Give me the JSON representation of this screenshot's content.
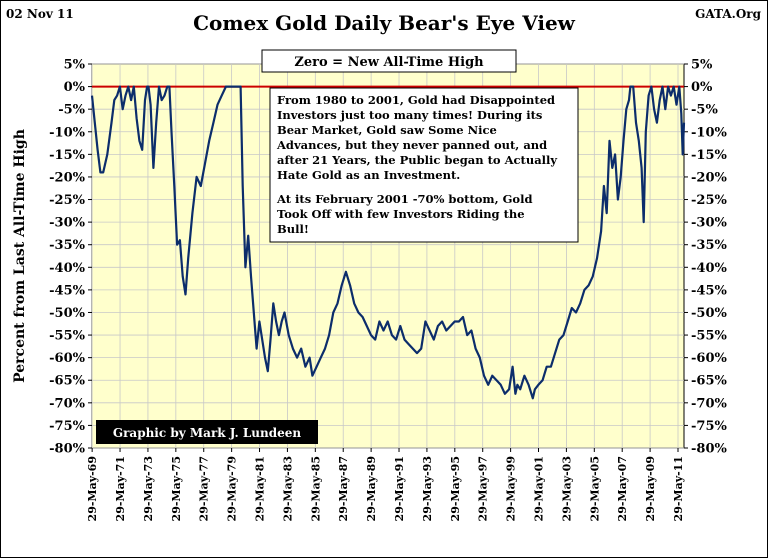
{
  "header": {
    "date_label": "02 Nov 11",
    "source_label": "GATA.Org",
    "title": "Comex Gold Daily Bear's Eye View"
  },
  "legend_box": "Zero = New All-Time High",
  "credit": "Graphic by Mark J. Lundeen",
  "annotation": {
    "line1": "From 1980 to 2001, Gold had Disappointed",
    "line2": "Investors just too many times!  During its",
    "line3": "Bear Market, Gold saw Some Nice",
    "line4": "Advances, but they never panned out, and",
    "line5": "after 21 Years, the Public began to Actually",
    "line6": "Hate Gold as an Investment.",
    "line7": "At its February 2001 -70% bottom, Gold",
    "line8": "Took Off with few Investors Riding the",
    "line9": "Bull!"
  },
  "colors": {
    "plot_background": "#ffffcc",
    "series": "#0c2d6b",
    "zero_line": "#cc0000",
    "gridline": "#c8c8c8"
  },
  "chart_data": {
    "type": "line",
    "title": "Comex Gold Daily Bear's Eye View",
    "ylabel": "Percent from Last All-Time High",
    "xlabel": "",
    "ylim": [
      -80,
      5
    ],
    "xlim": [
      1969.4,
      2011.84
    ],
    "y_ticks": [
      "5%",
      "0%",
      "-5%",
      "-10%",
      "-15%",
      "-20%",
      "-25%",
      "-30%",
      "-35%",
      "-40%",
      "-45%",
      "-50%",
      "-55%",
      "-60%",
      "-65%",
      "-70%",
      "-75%",
      "-80%"
    ],
    "x_ticks": [
      {
        "year": 1969.41,
        "label": "29-May-69"
      },
      {
        "year": 1971.41,
        "label": "29-May-71"
      },
      {
        "year": 1973.41,
        "label": "29-May-73"
      },
      {
        "year": 1975.41,
        "label": "29-May-75"
      },
      {
        "year": 1977.41,
        "label": "29-May-77"
      },
      {
        "year": 1979.41,
        "label": "29-May-79"
      },
      {
        "year": 1981.41,
        "label": "29-May-81"
      },
      {
        "year": 1983.41,
        "label": "29-May-83"
      },
      {
        "year": 1985.41,
        "label": "29-May-85"
      },
      {
        "year": 1987.41,
        "label": "29-May-87"
      },
      {
        "year": 1989.41,
        "label": "29-May-89"
      },
      {
        "year": 1991.41,
        "label": "29-May-91"
      },
      {
        "year": 1993.41,
        "label": "29-May-93"
      },
      {
        "year": 1995.41,
        "label": "29-May-95"
      },
      {
        "year": 1997.41,
        "label": "29-May-97"
      },
      {
        "year": 1999.41,
        "label": "29-May-99"
      },
      {
        "year": 2001.41,
        "label": "29-May-01"
      },
      {
        "year": 2003.41,
        "label": "29-May-03"
      },
      {
        "year": 2005.41,
        "label": "29-May-05"
      },
      {
        "year": 2007.41,
        "label": "29-May-07"
      },
      {
        "year": 2009.41,
        "label": "29-May-09"
      },
      {
        "year": 2011.41,
        "label": "29-May-11"
      }
    ],
    "grid": true,
    "zero_line": 0,
    "series": [
      {
        "x": [
          1969.4,
          1969.6,
          1969.8,
          1970.0,
          1970.2,
          1970.5,
          1970.8,
          1971.0,
          1971.2,
          1971.4,
          1971.6,
          1971.8,
          1972.0,
          1972.2,
          1972.4,
          1972.6,
          1972.8,
          1973.0,
          1973.2,
          1973.35,
          1973.45,
          1973.6,
          1973.8,
          1974.0,
          1974.2,
          1974.4,
          1974.6,
          1974.8,
          1974.95,
          1975.1,
          1975.3,
          1975.5,
          1975.7,
          1975.9,
          1976.1,
          1976.3,
          1976.6,
          1976.9,
          1977.2,
          1977.5,
          1977.8,
          1978.1,
          1978.4,
          1978.7,
          1979.0,
          1979.3,
          1979.6,
          1979.9,
          1980.05,
          1980.2,
          1980.4,
          1980.6,
          1980.8,
          1981.0,
          1981.2,
          1981.4,
          1981.6,
          1981.8,
          1982.0,
          1982.2,
          1982.4,
          1982.6,
          1982.8,
          1983.0,
          1983.2,
          1983.5,
          1983.8,
          1984.1,
          1984.4,
          1984.7,
          1985.0,
          1985.2,
          1985.5,
          1985.8,
          1986.1,
          1986.4,
          1986.7,
          1987.0,
          1987.3,
          1987.6,
          1987.9,
          1988.2,
          1988.5,
          1988.8,
          1989.1,
          1989.4,
          1989.7,
          1990.0,
          1990.3,
          1990.6,
          1990.9,
          1991.2,
          1991.5,
          1991.8,
          1992.1,
          1992.4,
          1992.7,
          1993.0,
          1993.3,
          1993.6,
          1993.9,
          1994.2,
          1994.5,
          1994.8,
          1995.1,
          1995.4,
          1995.7,
          1996.0,
          1996.3,
          1996.6,
          1996.9,
          1997.2,
          1997.5,
          1997.8,
          1998.1,
          1998.4,
          1998.7,
          1999.0,
          1999.3,
          1999.55,
          1999.75,
          1999.9,
          2000.1,
          2000.4,
          2000.7,
          2001.0,
          2001.15,
          2001.4,
          2001.7,
          2002.0,
          2002.3,
          2002.6,
          2002.9,
          2003.2,
          2003.5,
          2003.8,
          2004.1,
          2004.4,
          2004.7,
          2005.0,
          2005.3,
          2005.6,
          2005.9,
          2006.1,
          2006.3,
          2006.5,
          2006.7,
          2006.9,
          2007.1,
          2007.3,
          2007.5,
          2007.7,
          2007.9,
          2008.0,
          2008.2,
          2008.4,
          2008.6,
          2008.8,
          2008.95,
          2009.1,
          2009.3,
          2009.5,
          2009.7,
          2009.9,
          2010.1,
          2010.3,
          2010.5,
          2010.7,
          2010.9,
          2011.1,
          2011.3,
          2011.5,
          2011.65,
          2011.75,
          2011.84
        ],
        "y": [
          -2,
          -8,
          -14,
          -19,
          -19,
          -15,
          -8,
          -3,
          -2,
          0,
          -5,
          -2,
          0,
          -3,
          0,
          -7,
          -12,
          -14,
          -3,
          0,
          0,
          -4,
          -18,
          -8,
          0,
          -3,
          -2,
          0,
          0,
          -10,
          -22,
          -35,
          -34,
          -42,
          -46,
          -38,
          -28,
          -20,
          -22,
          -17,
          -12,
          -8,
          -4,
          -2,
          0,
          0,
          0,
          0,
          0,
          -22,
          -40,
          -33,
          -42,
          -50,
          -58,
          -52,
          -56,
          -60,
          -63,
          -56,
          -48,
          -52,
          -55,
          -52,
          -50,
          -55,
          -58,
          -60,
          -58,
          -62,
          -60,
          -64,
          -62,
          -60,
          -58,
          -55,
          -50,
          -48,
          -44,
          -41,
          -44,
          -48,
          -50,
          -51,
          -53,
          -55,
          -56,
          -52,
          -54,
          -52,
          -55,
          -56,
          -53,
          -56,
          -57,
          -58,
          -59,
          -58,
          -52,
          -54,
          -56,
          -53,
          -52,
          -54,
          -53,
          -52,
          -52,
          -51,
          -55,
          -54,
          -58,
          -60,
          -64,
          -66,
          -64,
          -65,
          -66,
          -68,
          -67,
          -62,
          -68,
          -66,
          -67,
          -64,
          -66,
          -69,
          -67,
          -66,
          -65,
          -62,
          -62,
          -59,
          -56,
          -55,
          -52,
          -49,
          -50,
          -48,
          -45,
          -44,
          -42,
          -38,
          -32,
          -22,
          -28,
          -12,
          -18,
          -15,
          -25,
          -20,
          -12,
          -5,
          -3,
          0,
          0,
          -8,
          -12,
          -18,
          -30,
          -10,
          -2,
          0,
          -5,
          -8,
          -3,
          0,
          -5,
          0,
          -2,
          0,
          -4,
          0,
          -6,
          -15,
          -8
        ]
      }
    ]
  }
}
